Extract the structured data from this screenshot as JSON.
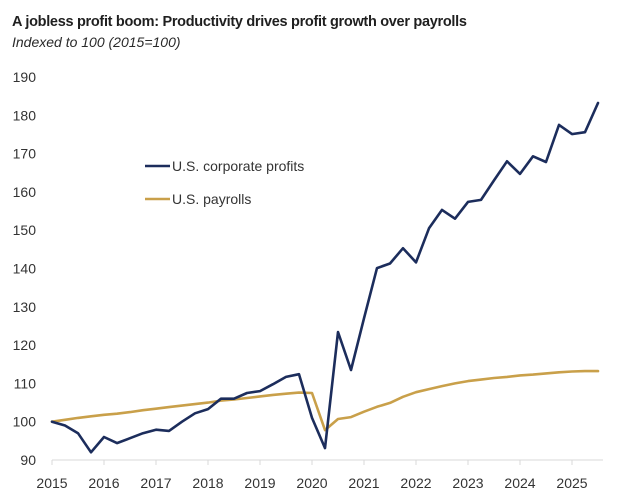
{
  "header": {
    "title": "A jobless profit boom: Productivity drives profit growth over payrolls",
    "subtitle": "Indexed to 100 (2015=100)"
  },
  "chart_data": {
    "type": "line",
    "title": "A jobless profit boom: Productivity drives profit growth over payrolls",
    "subtitle": "Indexed to 100 (2015=100)",
    "xlabel": "",
    "ylabel": "",
    "x_start": 2015,
    "x_step": 0.25,
    "xlim": [
      2015,
      2025.6
    ],
    "ylim": [
      90,
      190
    ],
    "yticks": [
      90,
      100,
      110,
      120,
      130,
      140,
      150,
      160,
      170,
      180,
      190
    ],
    "xticks": [
      "2015",
      "2016",
      "2017",
      "2018",
      "2019",
      "2020",
      "2021",
      "2022",
      "2023",
      "2024",
      "2025"
    ],
    "grid": false,
    "legend": "upper-left (inside plot)",
    "series": [
      {
        "name": "U.S. corporate profits",
        "color": "#1c2d5c",
        "values": [
          100,
          99,
          97,
          92,
          96,
          94.4,
          95.7,
          97,
          97.9,
          97.6,
          100,
          102.2,
          103.3,
          106,
          106,
          107.5,
          108,
          109.8,
          111.7,
          112.4,
          101,
          93.1,
          123.4,
          113.5,
          127,
          140.1,
          141.3,
          145.3,
          141.6,
          150.5,
          155.3,
          153,
          157.4,
          157.9,
          163,
          168,
          164.7,
          169.3,
          167.8,
          177.5,
          175.1,
          175.6,
          183.2
        ]
      },
      {
        "name": "U.S. payrolls",
        "color": "#c9a04a",
        "values": [
          100,
          100.5,
          101,
          101.4,
          101.8,
          102.1,
          102.5,
          103,
          103.4,
          103.8,
          104.2,
          104.6,
          105,
          105.5,
          105.8,
          106.2,
          106.6,
          107,
          107.3,
          107.6,
          107.5,
          97.8,
          100.7,
          101.2,
          102.6,
          103.9,
          104.9,
          106.5,
          107.7,
          108.5,
          109.3,
          110,
          110.6,
          111,
          111.4,
          111.7,
          112.1,
          112.3,
          112.6,
          112.9,
          113.1,
          113.2,
          113.2
        ]
      }
    ]
  }
}
